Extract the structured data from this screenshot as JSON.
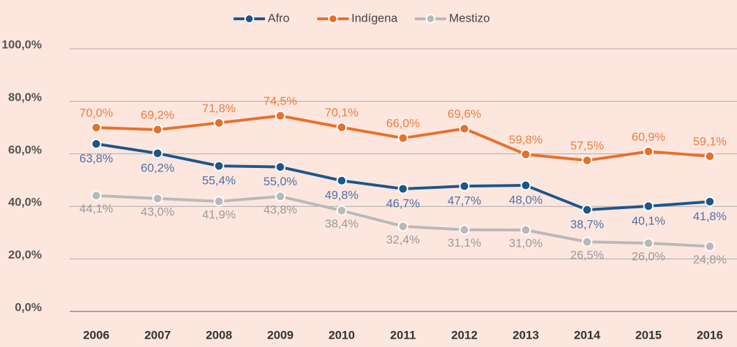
{
  "chart_data": {
    "type": "line",
    "categories": [
      "2006",
      "2007",
      "2008",
      "2009",
      "2010",
      "2011",
      "2012",
      "2013",
      "2014",
      "2015",
      "2016"
    ],
    "series": [
      {
        "name": "Afro",
        "color": "#1d568a",
        "label_color": "#4f70a8",
        "values": [
          63.8,
          60.2,
          55.4,
          55.0,
          49.8,
          46.7,
          47.7,
          48.0,
          38.7,
          40.1,
          41.8
        ],
        "value_labels": [
          "63,8%",
          "60,2%",
          "55,4%",
          "55,0%",
          "49,8%",
          "46,7%",
          "47,7%",
          "48,0%",
          "38,7%",
          "40,1%",
          "41,8%"
        ]
      },
      {
        "name": "Indígena",
        "color": "#e8702a",
        "label_color": "#ee7d3f",
        "values": [
          70.0,
          69.2,
          71.8,
          74.5,
          70.1,
          66.0,
          69.6,
          59.8,
          57.5,
          60.9,
          59.1
        ],
        "value_labels": [
          "70,0%",
          "69,2%",
          "71,8%",
          "74,5%",
          "70,1%",
          "66,0%",
          "69,6%",
          "59,8%",
          "57,5%",
          "60,9%",
          "59,1%"
        ]
      },
      {
        "name": "Mestizo",
        "color": "#b9b9b9",
        "label_color": "#9a9a9a",
        "values": [
          44.1,
          43.0,
          41.9,
          43.8,
          38.4,
          32.4,
          31.1,
          31.0,
          26.5,
          26.0,
          24.8
        ],
        "value_labels": [
          "44,1%",
          "43,0%",
          "41,9%",
          "43,8%",
          "38,4%",
          "32,4%",
          "31,1%",
          "31,0%",
          "26,5%",
          "26,0%",
          "24,8%"
        ]
      }
    ],
    "ylim": [
      0,
      100
    ],
    "yticks": [
      {
        "value": 0,
        "label": "0,0%"
      },
      {
        "value": 20,
        "label": "20,0%"
      },
      {
        "value": 40,
        "label": "40,0%"
      },
      {
        "value": 60,
        "label": "60,0%"
      },
      {
        "value": 80,
        "label": "80,0%"
      },
      {
        "value": 100,
        "label": "100,0%"
      }
    ],
    "grid": true,
    "legend": "top"
  }
}
